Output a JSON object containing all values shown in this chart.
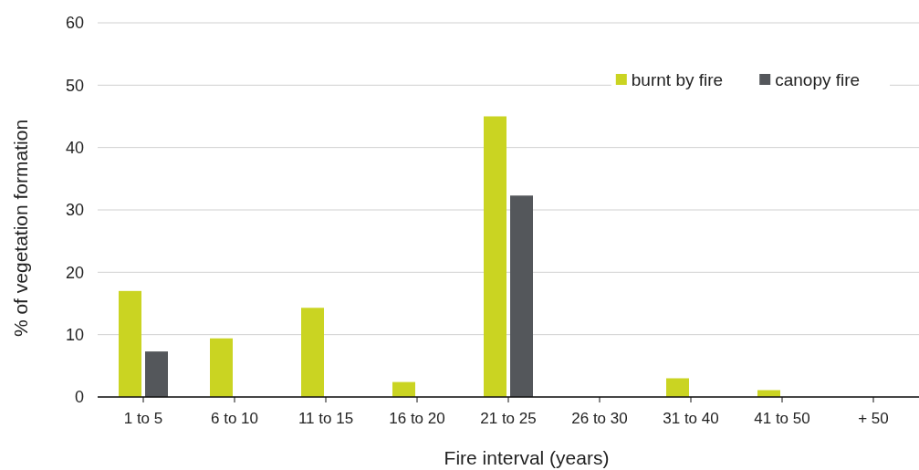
{
  "chart_data": {
    "type": "bar",
    "xlabel": "Fire interval (years)",
    "ylabel": "% of vegetation formation",
    "categories": [
      "1 to 5",
      "6 to 10",
      "11 to 15",
      "16 to 20",
      "21 to 25",
      "26 to 30",
      "31 to 40",
      "41 to 50",
      "+ 50"
    ],
    "series": [
      {
        "name": "burnt by fire",
        "color": "#cad422",
        "values": [
          17,
          9.4,
          14.3,
          2.4,
          45,
          0,
          3,
          1.1,
          0
        ]
      },
      {
        "name": "canopy fire",
        "color": "#54575b",
        "values": [
          7.3,
          0,
          0,
          0,
          32.3,
          0,
          0,
          0,
          0
        ]
      }
    ],
    "ylim": [
      0,
      60
    ],
    "yticks": [
      0,
      10,
      20,
      30,
      40,
      50,
      60
    ],
    "grid": "y",
    "legend": "top right"
  }
}
